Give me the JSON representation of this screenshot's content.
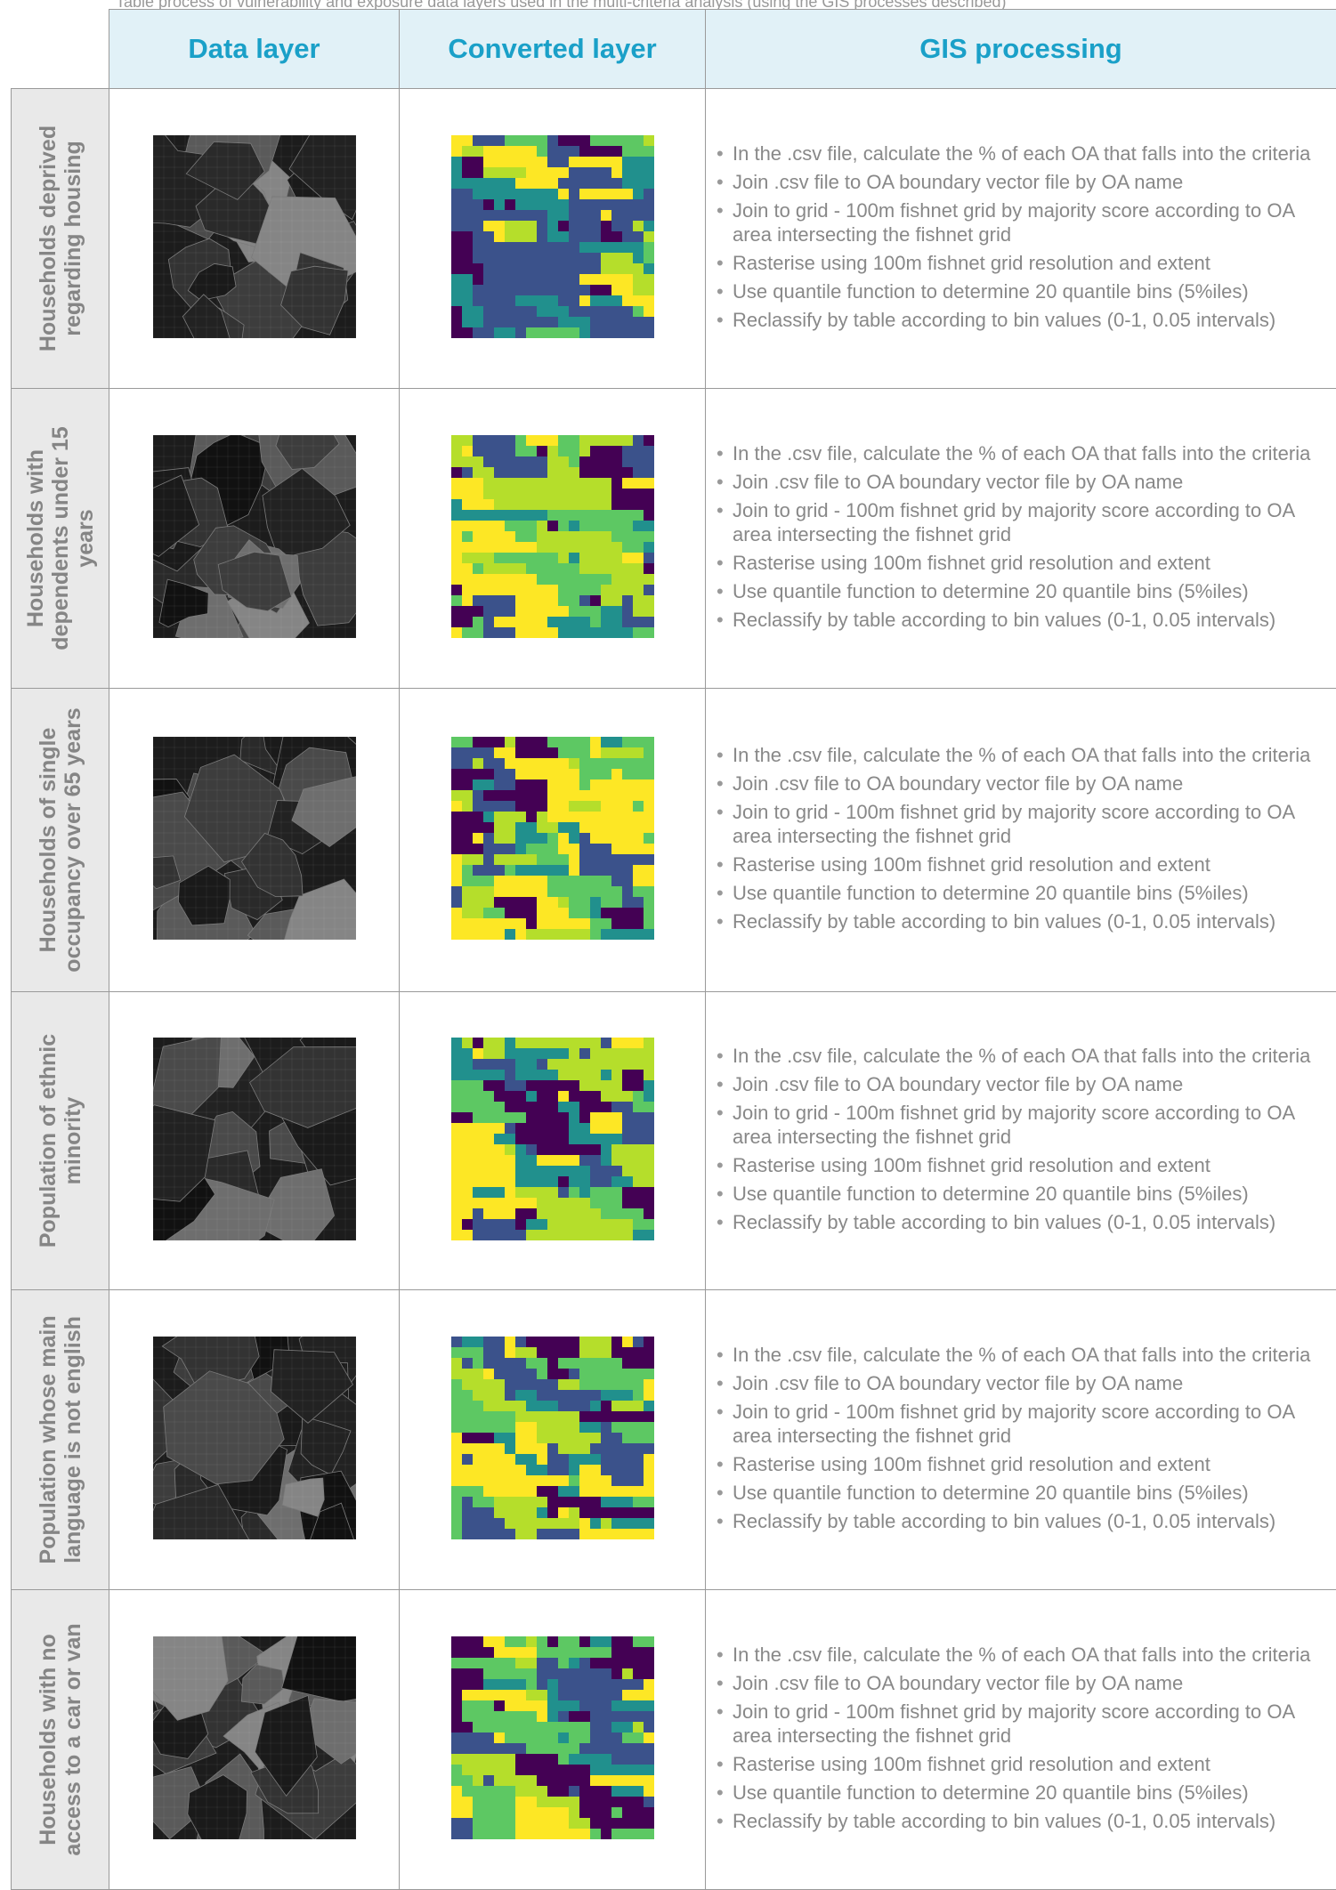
{
  "caption": "Table process of vulnerability and exposure data layers used in the multi-criteria analysis (using the GIS processes described)",
  "headers": {
    "data_layer": "Data layer",
    "converted_layer": "Converted layer",
    "gis_processing": "GIS processing"
  },
  "colors": {
    "header_bg": "#e1f1f7",
    "header_text": "#1aa0c8",
    "rowhead_bg": "#e9e9e9",
    "viridis": [
      "#440154",
      "#3b528b",
      "#21908d",
      "#5dc863",
      "#b5de2b",
      "#fde725"
    ]
  },
  "rows": [
    {
      "label": "Households deprived regarding housing",
      "data_map_icon": "grayscale-oa-boundary-map",
      "converted_map_icon": "viridis-raster-grid",
      "steps": [
        "In the .csv file, calculate the % of each OA that falls into the criteria",
        "Join .csv file to OA boundary vector file by OA name",
        "Join to grid - 100m fishnet grid by majority score according to OA area intersecting the fishnet grid",
        "Rasterise using 100m fishnet grid resolution and extent",
        "Use quantile function to determine 20 quantile bins (5%iles)",
        "Reclassify by table according to bin values (0-1, 0.05 intervals)"
      ]
    },
    {
      "label": "Households with dependents under 15 years",
      "data_map_icon": "grayscale-oa-boundary-map",
      "converted_map_icon": "viridis-raster-grid",
      "steps": [
        "In the .csv file, calculate the % of each OA that falls into the criteria",
        "Join .csv file to OA boundary vector file by OA name",
        "Join to grid - 100m fishnet grid by majority score according to OA area intersecting the fishnet grid",
        "Rasterise using 100m fishnet grid resolution and extent",
        "Use quantile function to determine 20 quantile bins (5%iles)",
        "Reclassify by table according to bin values (0-1, 0.05 intervals)"
      ]
    },
    {
      "label": "Households of single occupancy over 65 years",
      "data_map_icon": "grayscale-oa-boundary-map",
      "converted_map_icon": "viridis-raster-grid",
      "steps": [
        "In the .csv file, calculate the % of each OA that falls into the criteria",
        "Join .csv file to OA boundary vector file by OA name",
        "Join to grid - 100m fishnet grid by majority score according to OA area intersecting the fishnet grid",
        "Rasterise using 100m fishnet grid resolution and extent",
        "Use quantile function to determine 20 quantile bins (5%iles)",
        "Reclassify by table according to bin values (0-1, 0.05 intervals)"
      ]
    },
    {
      "label": "Population of ethnic minority",
      "data_map_icon": "grayscale-oa-boundary-map",
      "converted_map_icon": "viridis-raster-grid",
      "steps": [
        "In the .csv file, calculate the % of each OA that falls into the criteria",
        "Join .csv file to OA boundary vector file by OA name",
        "Join to grid - 100m fishnet grid by majority score according to OA area intersecting the fishnet grid",
        "Rasterise using 100m fishnet grid resolution and extent",
        "Use quantile function to determine 20 quantile bins (5%iles)",
        "Reclassify by table according to bin values (0-1, 0.05 intervals)"
      ]
    },
    {
      "label": "Population whose main language is not english",
      "data_map_icon": "grayscale-oa-boundary-map",
      "converted_map_icon": "viridis-raster-grid",
      "steps": [
        "In the .csv file, calculate the % of each OA that falls into the criteria",
        "Join .csv file to OA boundary vector file by OA name",
        "Join to grid - 100m fishnet grid by majority score according to OA area intersecting the fishnet grid",
        "Rasterise using 100m fishnet grid resolution and extent",
        "Use quantile function to determine 20 quantile bins (5%iles)",
        "Reclassify by table according to bin values (0-1, 0.05 intervals)"
      ]
    },
    {
      "label": "Households with no access to a car or van",
      "data_map_icon": "grayscale-oa-boundary-map",
      "converted_map_icon": "viridis-raster-grid",
      "steps": [
        "In the .csv file, calculate the % of each OA that falls into the criteria",
        "Join .csv file to OA boundary vector file by OA name",
        "Join to grid - 100m fishnet grid by majority score according to OA area intersecting the fishnet grid",
        "Rasterise using 100m fishnet grid resolution and extent",
        "Use quantile function to determine 20 quantile bins (5%iles)",
        "Reclassify by table according to bin values (0-1, 0.05 intervals)"
      ]
    }
  ]
}
